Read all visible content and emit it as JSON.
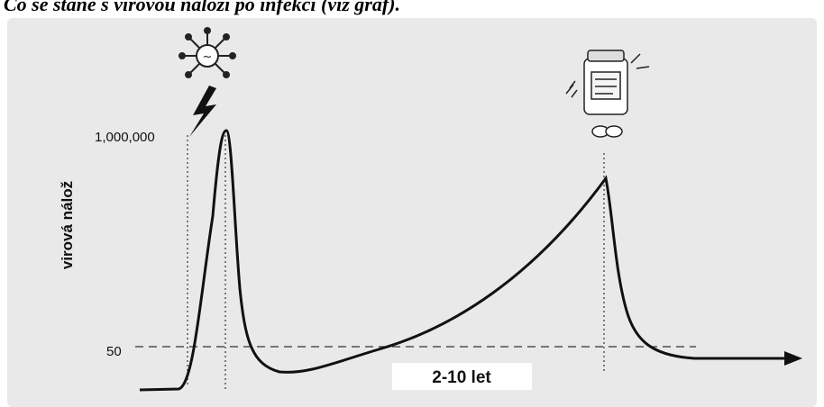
{
  "title": "Co se stane s virovou náloží po infekci (viz graf).",
  "y_axis_label": "virová nálož",
  "ticks": [
    "1,000,000",
    "50"
  ],
  "period_label": "2-10 let"
}
